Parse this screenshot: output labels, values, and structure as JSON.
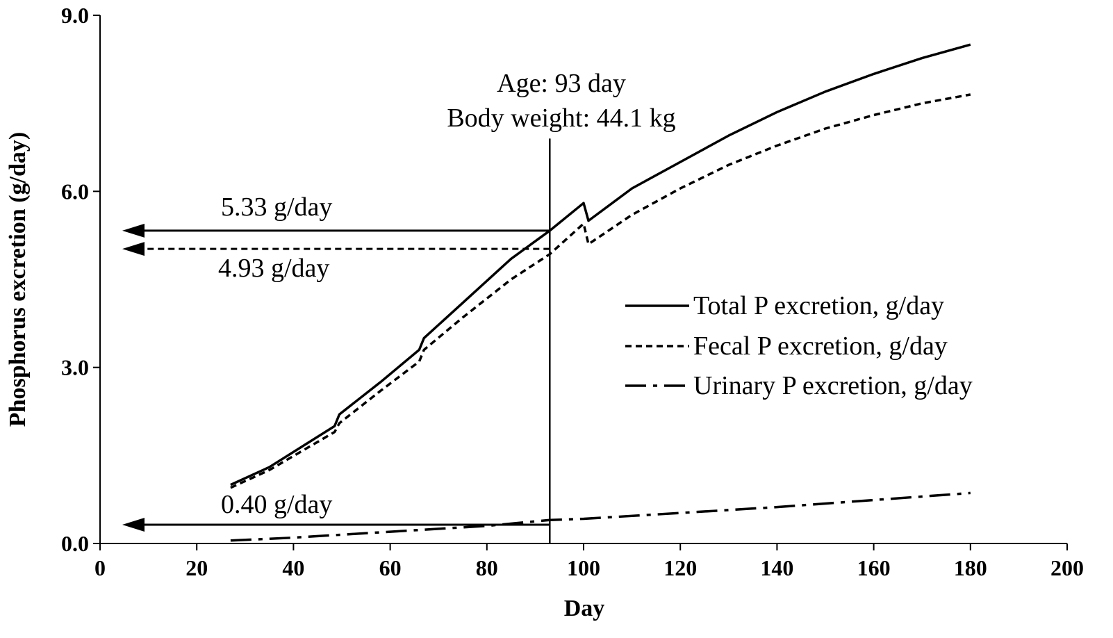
{
  "chart_data": {
    "type": "line",
    "xlabel": "Day",
    "ylabel": "Phosphorus excretion (g/day)",
    "xlim": [
      0,
      200
    ],
    "ylim": [
      0,
      9
    ],
    "x_ticks": [
      0,
      20,
      40,
      60,
      80,
      100,
      120,
      140,
      160,
      180,
      200
    ],
    "y_ticks": [
      0.0,
      3.0,
      6.0,
      9.0
    ],
    "x_tick_labels": [
      "0",
      "20",
      "40",
      "60",
      "80",
      "100",
      "120",
      "140",
      "160",
      "180",
      "200"
    ],
    "y_tick_labels": [
      "0.0",
      "3.0",
      "6.0",
      "9.0"
    ],
    "grid": false,
    "legend_position": "right",
    "series": [
      {
        "name": "Total P excretion, g/day",
        "style": "solid",
        "color": "#000000",
        "points": [
          [
            27,
            1.0
          ],
          [
            35,
            1.3
          ],
          [
            48.5,
            2.0
          ],
          [
            49.5,
            2.2
          ],
          [
            58,
            2.75
          ],
          [
            66,
            3.3
          ],
          [
            67,
            3.5
          ],
          [
            75,
            4.1
          ],
          [
            85,
            4.85
          ],
          [
            93,
            5.33
          ],
          [
            100,
            5.8
          ],
          [
            101,
            5.5
          ],
          [
            110,
            6.05
          ],
          [
            120,
            6.5
          ],
          [
            130,
            6.95
          ],
          [
            140,
            7.35
          ],
          [
            150,
            7.7
          ],
          [
            160,
            8.0
          ],
          [
            170,
            8.27
          ],
          [
            180,
            8.5
          ]
        ]
      },
      {
        "name": "Fecal P excretion, g/day",
        "style": "dashed",
        "color": "#000000",
        "points": [
          [
            27,
            0.95
          ],
          [
            35,
            1.25
          ],
          [
            48.5,
            1.9
          ],
          [
            49.5,
            2.05
          ],
          [
            58,
            2.6
          ],
          [
            66,
            3.1
          ],
          [
            67,
            3.3
          ],
          [
            75,
            3.85
          ],
          [
            85,
            4.5
          ],
          [
            93,
            4.93
          ],
          [
            100,
            5.45
          ],
          [
            101,
            5.1
          ],
          [
            110,
            5.6
          ],
          [
            120,
            6.05
          ],
          [
            130,
            6.45
          ],
          [
            140,
            6.78
          ],
          [
            150,
            7.07
          ],
          [
            160,
            7.3
          ],
          [
            170,
            7.5
          ],
          [
            180,
            7.65
          ]
        ]
      },
      {
        "name": "Urinary P excretion, g/day",
        "style": "dashdot",
        "color": "#000000",
        "points": [
          [
            27,
            0.05
          ],
          [
            40,
            0.1
          ],
          [
            50,
            0.15
          ],
          [
            60,
            0.2
          ],
          [
            70,
            0.25
          ],
          [
            80,
            0.3
          ],
          [
            93,
            0.4
          ],
          [
            100,
            0.42
          ],
          [
            120,
            0.52
          ],
          [
            140,
            0.62
          ],
          [
            160,
            0.74
          ],
          [
            180,
            0.86
          ]
        ]
      }
    ],
    "marker_line": {
      "x": 93,
      "y_top": 6.9
    },
    "annotations": {
      "age_text": "Age: 93 day",
      "weight_text": "Body weight: 44.1 kg",
      "total_value_text": "5.33 g/day",
      "fecal_value_text": "4.93 g/day",
      "urinary_value_text": "0.40 g/day",
      "arrows": [
        {
          "series": "total",
          "y": 5.33,
          "style": "solid"
        },
        {
          "series": "fecal",
          "y": 5.02,
          "style": "dashed"
        },
        {
          "series": "urinary",
          "y": 0.32,
          "style": "solid"
        }
      ]
    }
  }
}
